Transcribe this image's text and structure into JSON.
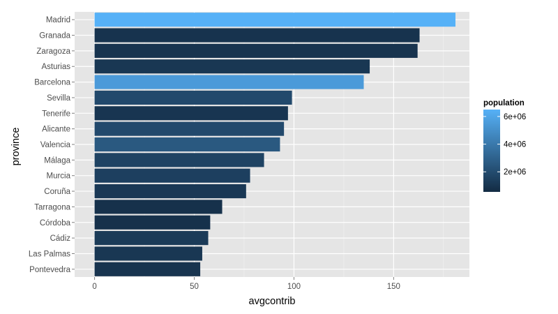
{
  "chart_data": {
    "type": "bar",
    "orientation": "horizontal",
    "xlabel": "avgcontrib",
    "ylabel": "province",
    "xlim": [
      -10,
      188
    ],
    "xticks": [
      0,
      50,
      100,
      150
    ],
    "xtick_labels": [
      "0",
      "50",
      "100",
      "150"
    ],
    "grid": true,
    "categories": [
      "Madrid",
      "Granada",
      "Zaragoza",
      "Asturias",
      "Barcelona",
      "Sevilla",
      "Tenerife",
      "Alicante",
      "Valencia",
      "Málaga",
      "Murcia",
      "Coruña",
      "Tarragona",
      "Córdoba",
      "Cádiz",
      "Las Palmas",
      "Pontevedra"
    ],
    "values": [
      181,
      163,
      162,
      138,
      135,
      99,
      97,
      95,
      93,
      85,
      78,
      76,
      64,
      58,
      57,
      54,
      53
    ],
    "fill_variable": "population",
    "fill_values": [
      6500000,
      900000,
      950000,
      1070000,
      5500000,
      1900000,
      1000000,
      1900000,
      2580000,
      1620000,
      1460000,
      1140000,
      800000,
      800000,
      1240000,
      1090000,
      960000
    ],
    "legend": {
      "title": "population",
      "position": "right",
      "breaks": [
        2000000,
        4000000,
        6000000
      ],
      "labels": [
        "2e+06",
        "4e+06",
        "6e+06"
      ],
      "range": [
        550000,
        6500000
      ],
      "low_color": "#132B43",
      "high_color": "#56B1F7"
    }
  }
}
